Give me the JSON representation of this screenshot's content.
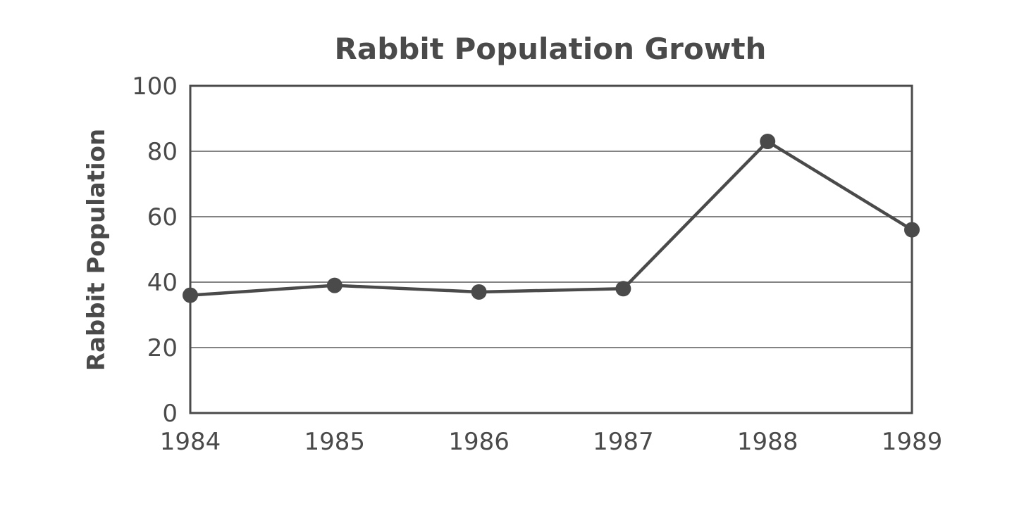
{
  "chart_data": {
    "type": "line",
    "title": "Rabbit Population Growth",
    "xlabel": "",
    "ylabel": "Rabbit Population",
    "categories": [
      "1984",
      "1985",
      "1986",
      "1987",
      "1988",
      "1989"
    ],
    "series": [
      {
        "name": "Rabbit Population",
        "values": [
          36,
          39,
          37,
          38,
          83,
          56
        ]
      }
    ],
    "ylim": [
      0,
      100
    ],
    "yticks": [
      0,
      20,
      40,
      60,
      80,
      100
    ],
    "grid": true,
    "legend": "none",
    "colors": {
      "ink": "#4a4a4a"
    }
  }
}
